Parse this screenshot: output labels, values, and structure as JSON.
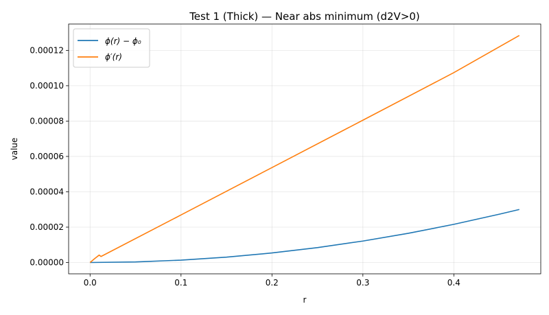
{
  "chart_data": {
    "type": "line",
    "title": "Test 1 (Thick) — Near abs minimum (d2V>0)",
    "xlabel": "r",
    "ylabel": "value",
    "xlim": [
      -0.0236,
      0.4956
    ],
    "ylim": [
      -6.4e-06,
      0.0001349
    ],
    "xticks": [
      0.0,
      0.1,
      0.2,
      0.3,
      0.4
    ],
    "xtick_labels": [
      "0.0",
      "0.1",
      "0.2",
      "0.3",
      "0.4"
    ],
    "yticks": [
      0,
      2e-05,
      4e-05,
      6e-05,
      8e-05,
      0.0001,
      0.00012
    ],
    "ytick_labels": [
      "0.00000",
      "0.00002",
      "0.00004",
      "0.00006",
      "0.00008",
      "0.00010",
      "0.00012"
    ],
    "grid": true,
    "legend_position": "top-left",
    "series": [
      {
        "name": "ϕ(r) − ϕ₀",
        "color": "#1f77b4",
        "x": [
          0.0,
          0.05,
          0.1,
          0.15,
          0.2,
          0.25,
          0.3,
          0.35,
          0.4,
          0.45,
          0.472
        ],
        "y": [
          0.0,
          3.4e-07,
          1.35e-06,
          3.03e-06,
          5.4e-06,
          8.43e-06,
          1.214e-05,
          1.653e-05,
          2.159e-05,
          2.733e-05,
          3e-05
        ]
      },
      {
        "name": "ϕ′(r)",
        "color": "#ff7f0e",
        "x": [
          0.0,
          0.005,
          0.01,
          0.012,
          0.1,
          0.2,
          0.3,
          0.4,
          0.472
        ],
        "y": [
          0.0,
          2.2e-06,
          4.2e-06,
          3.4e-06,
          2.69e-05,
          5.37e-05,
          8.05e-05,
          0.0001074,
          0.0001284
        ]
      }
    ]
  }
}
